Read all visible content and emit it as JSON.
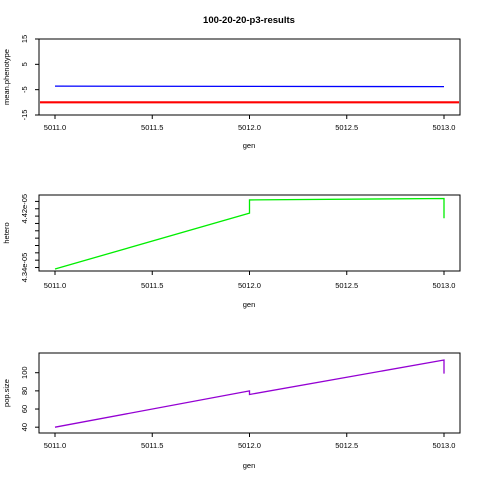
{
  "chart_data": [
    {
      "type": "line",
      "title": "100-20-20-p3-results",
      "xlabel": "gen",
      "ylabel": "mean.phenotype",
      "xlim": [
        5011.0,
        5013.0
      ],
      "ylim": [
        -15,
        15
      ],
      "x_ticks": [
        "5011.0",
        "5011.5",
        "5012.0",
        "5012.5",
        "5013.0"
      ],
      "y_ticks": [
        "-15",
        "-5",
        "5",
        "15"
      ],
      "y_tick_values": [
        -15,
        -5,
        5,
        15
      ],
      "grid": false,
      "series": [
        {
          "color": "#0000ff",
          "x": [
            5011.0,
            5013.0
          ],
          "values": [
            -3.6,
            -3.8
          ]
        }
      ],
      "hlines": [
        {
          "y": -10.0,
          "color": "#ff0000"
        }
      ]
    },
    {
      "type": "line",
      "title": "",
      "xlabel": "gen",
      "ylabel": "hetero",
      "xlim": [
        5011.0,
        5013.0
      ],
      "ylim": [
        4.338e-05,
        4.436e-05
      ],
      "x_ticks": [
        "5011.0",
        "5011.5",
        "5012.0",
        "5012.5",
        "5013.0"
      ],
      "y_ticks": [
        "4.34e-05",
        "4.42e-05"
      ],
      "y_tick_values": [
        4.34e-05,
        4.42e-05
      ],
      "y_minor_tick_values": [
        4.35e-05,
        4.36e-05,
        4.37e-05,
        4.38e-05,
        4.39e-05,
        4.4e-05,
        4.41e-05,
        4.43e-05
      ],
      "grid": false,
      "series": [
        {
          "color": "#00ee00",
          "x": [
            5011.0,
            5012.0,
            5012.0,
            5013.0,
            5013.0
          ],
          "values": [
            4.338e-05,
            4.414e-05,
            4.432e-05,
            4.434e-05,
            4.407e-05
          ]
        }
      ]
    },
    {
      "type": "line",
      "title": "",
      "xlabel": "gen",
      "ylabel": "pop.size",
      "xlim": [
        5011.0,
        5013.0
      ],
      "ylim": [
        38,
        114
      ],
      "x_ticks": [
        "5011.0",
        "5011.5",
        "5012.0",
        "5012.5",
        "5013.0"
      ],
      "y_ticks": [
        "40",
        "60",
        "80",
        "100"
      ],
      "y_tick_values": [
        40,
        60,
        80,
        100
      ],
      "grid": false,
      "series": [
        {
          "color": "#9400d3",
          "x": [
            5011.0,
            5012.0,
            5012.0,
            5013.0,
            5013.0
          ],
          "values": [
            40,
            80,
            76,
            114,
            99
          ]
        }
      ]
    }
  ]
}
